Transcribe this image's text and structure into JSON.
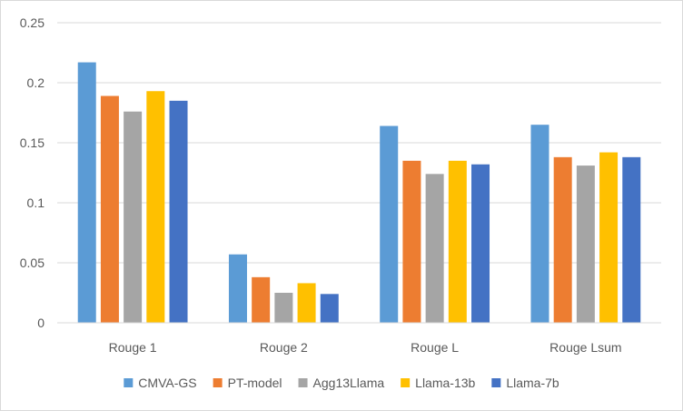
{
  "chart_data": {
    "type": "bar",
    "title": "",
    "xlabel": "",
    "ylabel": "",
    "categories": [
      "Rouge 1",
      "Rouge 2",
      "Rouge L",
      "Rouge Lsum"
    ],
    "ylim": [
      0,
      0.25
    ],
    "yticks": [
      0,
      0.05,
      0.1,
      0.15,
      0.2,
      0.25
    ],
    "ytick_labels": [
      "0",
      "0.05",
      "0.1",
      "0.15",
      "0.2",
      "0.25"
    ],
    "grid": true,
    "legend_position": "bottom",
    "series": [
      {
        "name": "CMVA-GS",
        "color": "#5B9BD5",
        "values": [
          0.217,
          0.057,
          0.164,
          0.165
        ]
      },
      {
        "name": "PT-model",
        "color": "#ED7D31",
        "values": [
          0.189,
          0.038,
          0.135,
          0.138
        ]
      },
      {
        "name": "Agg13Llama",
        "color": "#A5A5A5",
        "values": [
          0.176,
          0.025,
          0.124,
          0.131
        ]
      },
      {
        "name": "Llama-13b",
        "color": "#FFC000",
        "values": [
          0.193,
          0.033,
          0.135,
          0.142
        ]
      },
      {
        "name": "Llama-7b",
        "color": "#4472C4",
        "values": [
          0.185,
          0.024,
          0.132,
          0.138
        ]
      }
    ]
  }
}
